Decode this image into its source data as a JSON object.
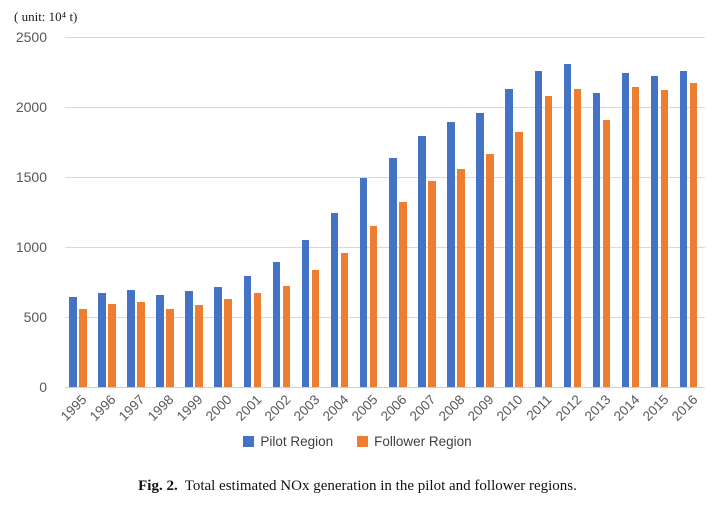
{
  "unit_label": "( unit: 10⁴ t)",
  "chart_data": {
    "type": "bar",
    "title": "",
    "xlabel": "",
    "ylabel": "( unit: 10⁴ t)",
    "categories": [
      "1995",
      "1996",
      "1997",
      "1998",
      "1999",
      "2000",
      "2001",
      "2002",
      "2003",
      "2004",
      "2005",
      "2006",
      "2007",
      "2008",
      "2009",
      "2010",
      "2011",
      "2012",
      "2013",
      "2014",
      "2015",
      "2016"
    ],
    "series": [
      {
        "name": "Pilot Region",
        "color": "#4472C4",
        "values": [
          645,
          670,
          690,
          660,
          685,
          715,
          795,
          890,
          1050,
          1240,
          1495,
          1635,
          1790,
          1895,
          1955,
          2130,
          2255,
          2310,
          2100,
          2245,
          2225,
          2255
        ]
      },
      {
        "name": "Follower Region",
        "color": "#ED7D31",
        "values": [
          560,
          595,
          610,
          555,
          585,
          630,
          675,
          720,
          835,
          960,
          1150,
          1325,
          1475,
          1560,
          1665,
          1825,
          2080,
          2130,
          1905,
          2140,
          2125,
          2175
        ]
      }
    ],
    "ylim": [
      0,
      2500
    ],
    "yticks": [
      0,
      500,
      1000,
      1500,
      2000,
      2500
    ],
    "grid": true,
    "legend_position": "bottom"
  },
  "legend": {
    "pilot_label": "Pilot Region",
    "follower_label": "Follower Region"
  },
  "colors": {
    "pilot": "#4472C4",
    "follower": "#ED7D31",
    "gridline": "#D9D9D9",
    "axis_text": "#595959"
  },
  "caption": {
    "fig_label": "Fig. 2.",
    "text": "Total estimated NOx generation in the pilot and follower regions."
  }
}
